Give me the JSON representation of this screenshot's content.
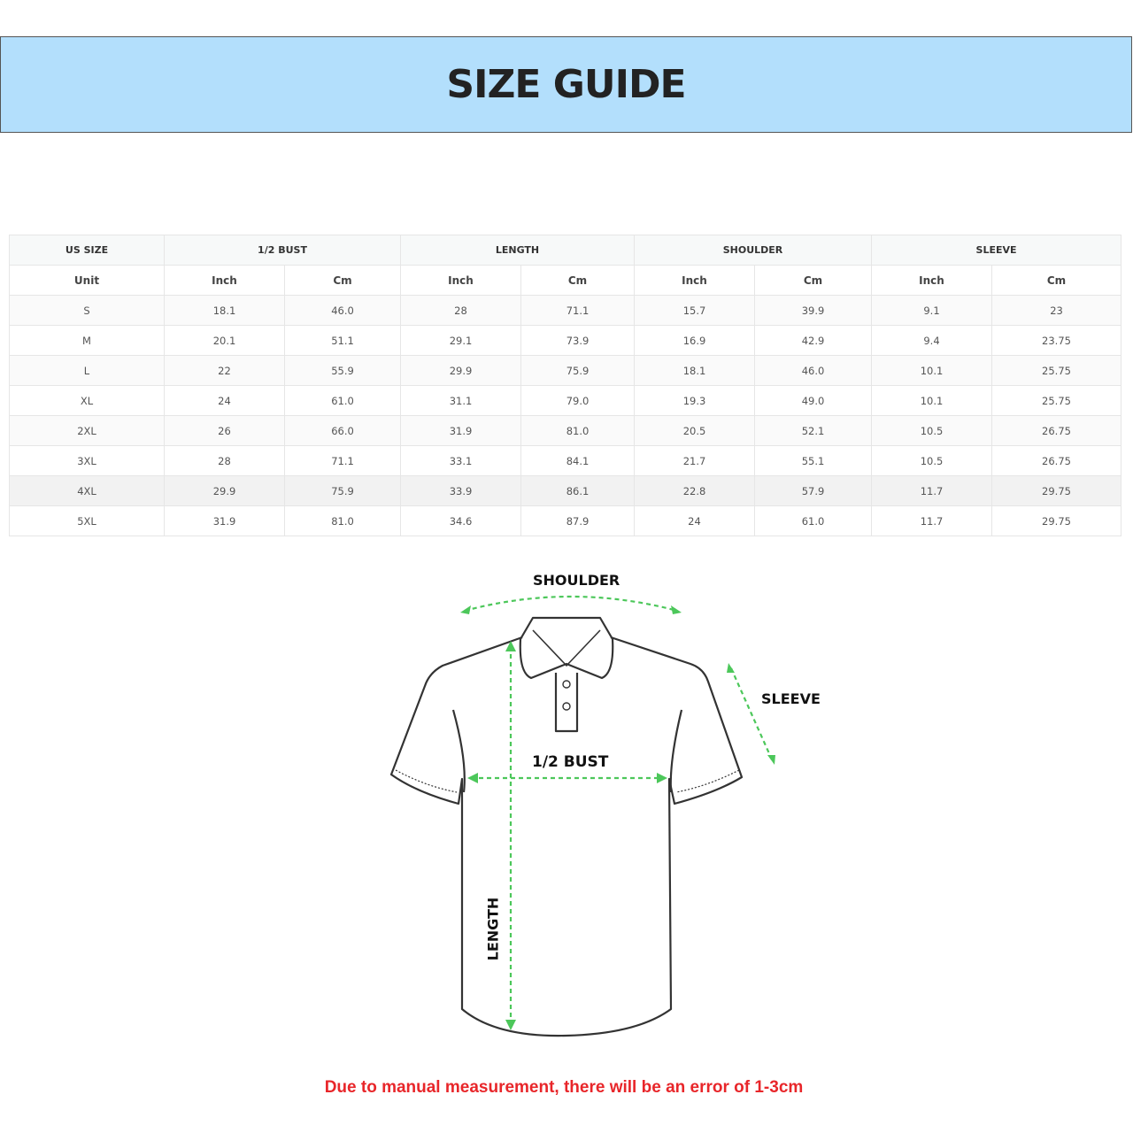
{
  "title": "SIZE GUIDE",
  "table": {
    "group_headers": [
      "US SIZE",
      "1/2 BUST",
      "LENGTH",
      "SHOULDER",
      "SLEEVE"
    ],
    "unit_headers": [
      "Unit",
      "Inch",
      "Cm",
      "Inch",
      "Cm",
      "Inch",
      "Cm",
      "Inch",
      "Cm"
    ],
    "rows": [
      [
        "S",
        "18.1",
        "46.0",
        "28",
        "71.1",
        "15.7",
        "39.9",
        "9.1",
        "23"
      ],
      [
        "M",
        "20.1",
        "51.1",
        "29.1",
        "73.9",
        "16.9",
        "42.9",
        "9.4",
        "23.75"
      ],
      [
        "L",
        "22",
        "55.9",
        "29.9",
        "75.9",
        "18.1",
        "46.0",
        "10.1",
        "25.75"
      ],
      [
        "XL",
        "24",
        "61.0",
        "31.1",
        "79.0",
        "19.3",
        "49.0",
        "10.1",
        "25.75"
      ],
      [
        "2XL",
        "26",
        "66.0",
        "31.9",
        "81.0",
        "20.5",
        "52.1",
        "10.5",
        "26.75"
      ],
      [
        "3XL",
        "28",
        "71.1",
        "33.1",
        "84.1",
        "21.7",
        "55.1",
        "10.5",
        "26.75"
      ],
      [
        "4XL",
        "29.9",
        "75.9",
        "33.9",
        "86.1",
        "22.8",
        "57.9",
        "11.7",
        "29.75"
      ],
      [
        "5XL",
        "31.9",
        "81.0",
        "34.6",
        "87.9",
        "24",
        "61.0",
        "11.7",
        "29.75"
      ]
    ]
  },
  "diagram": {
    "shoulder_label": "SHOULDER",
    "sleeve_label": "SLEEVE",
    "bust_label": "1/2 BUST",
    "length_label": "LENGTH",
    "arrow_color": "#4cc75a"
  },
  "note": "Due to manual measurement, there will be an error of 1-3cm",
  "colors": {
    "banner": "#b3dffc",
    "note": "#e8262a"
  }
}
